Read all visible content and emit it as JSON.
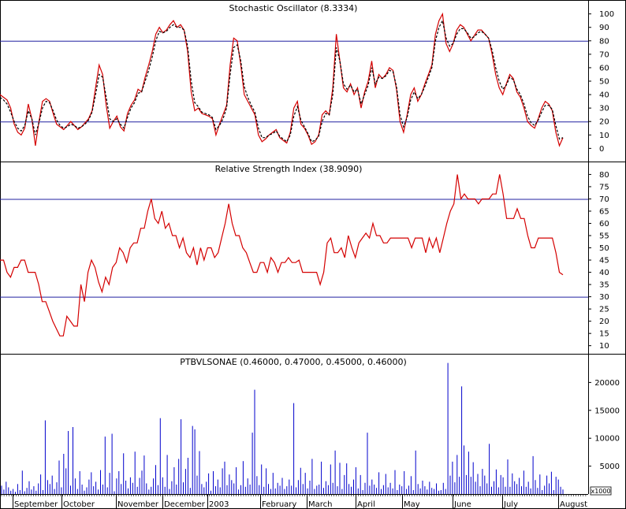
{
  "chart_data": [
    {
      "type": "line",
      "title": "Stochastic Oscillator (8.3334)",
      "ylim": [
        -8,
        108
      ],
      "yticks": [
        0,
        10,
        20,
        30,
        40,
        50,
        60,
        70,
        80,
        90,
        100
      ],
      "reference_lines": [
        20,
        80
      ],
      "series": [
        {
          "style": "solid",
          "color": "#d40000",
          "values": [
            40,
            38,
            36,
            30,
            18,
            12,
            10,
            15,
            33,
            22,
            2,
            20,
            35,
            37,
            35,
            26,
            18,
            16,
            14,
            17,
            20,
            17,
            14,
            16,
            19,
            22,
            28,
            45,
            62,
            55,
            32,
            15,
            20,
            24,
            16,
            13,
            26,
            32,
            36,
            44,
            42,
            53,
            62,
            72,
            85,
            90,
            86,
            88,
            92,
            95,
            90,
            92,
            88,
            72,
            42,
            28,
            30,
            26,
            25,
            24,
            22,
            10,
            18,
            25,
            32,
            62,
            82,
            80,
            62,
            40,
            35,
            30,
            25,
            10,
            5,
            7,
            10,
            12,
            14,
            8,
            6,
            4,
            12,
            30,
            35,
            18,
            15,
            10,
            3,
            5,
            10,
            25,
            28,
            25,
            45,
            85,
            65,
            45,
            42,
            48,
            40,
            45,
            30,
            42,
            50,
            65,
            45,
            55,
            52,
            55,
            60,
            58,
            44,
            20,
            12,
            25,
            40,
            45,
            35,
            40,
            48,
            55,
            62,
            85,
            95,
            100,
            78,
            72,
            78,
            88,
            92,
            90,
            85,
            80,
            84,
            88,
            88,
            85,
            82,
            70,
            55,
            45,
            40,
            48,
            55,
            52,
            42,
            38,
            30,
            20,
            17,
            15,
            22,
            30,
            35,
            33,
            28,
            12,
            2,
            8
          ]
        },
        {
          "style": "dashed",
          "color": "#000000",
          "values": [
            38,
            36,
            33,
            27,
            20,
            15,
            13,
            17,
            28,
            22,
            10,
            19,
            30,
            35,
            34,
            28,
            21,
            17,
            15,
            16,
            18,
            17,
            15,
            16,
            18,
            21,
            27,
            40,
            55,
            53,
            38,
            22,
            20,
            22,
            18,
            15,
            23,
            30,
            34,
            41,
            42,
            50,
            58,
            68,
            80,
            87,
            86,
            87,
            90,
            92,
            90,
            90,
            88,
            76,
            50,
            34,
            31,
            27,
            26,
            25,
            23,
            14,
            17,
            22,
            30,
            55,
            75,
            77,
            65,
            46,
            38,
            32,
            27,
            15,
            8,
            8,
            10,
            11,
            13,
            9,
            7,
            5,
            10,
            24,
            31,
            21,
            16,
            11,
            5,
            6,
            9,
            20,
            26,
            25,
            40,
            75,
            65,
            48,
            44,
            47,
            42,
            44,
            33,
            40,
            47,
            60,
            48,
            53,
            52,
            54,
            58,
            57,
            46,
            25,
            16,
            23,
            36,
            42,
            37,
            40,
            46,
            53,
            60,
            80,
            90,
            95,
            82,
            76,
            78,
            85,
            89,
            89,
            86,
            82,
            83,
            86,
            87,
            85,
            82,
            73,
            60,
            50,
            44,
            47,
            53,
            51,
            44,
            40,
            33,
            24,
            19,
            17,
            21,
            27,
            32,
            32,
            29,
            17,
            7,
            8
          ]
        }
      ]
    },
    {
      "type": "line",
      "title": "Relative Strength Index (38.9090)",
      "ylim": [
        7,
        84
      ],
      "yticks": [
        10,
        15,
        20,
        25,
        30,
        35,
        40,
        45,
        50,
        55,
        60,
        65,
        70,
        75,
        80
      ],
      "reference_lines": [
        30,
        70
      ],
      "series": [
        {
          "color": "#d40000",
          "values": [
            45,
            45,
            40,
            38,
            42,
            42,
            45,
            45,
            40,
            40,
            40,
            35,
            28,
            28,
            24,
            20,
            17,
            14,
            14,
            22,
            20,
            18,
            18,
            35,
            28,
            40,
            45,
            42,
            36,
            32,
            38,
            35,
            42,
            44,
            50,
            48,
            44,
            50,
            52,
            52,
            58,
            58,
            65,
            70,
            62,
            60,
            65,
            58,
            60,
            55,
            55,
            50,
            54,
            48,
            46,
            50,
            43,
            50,
            45,
            50,
            50,
            46,
            48,
            54,
            60,
            68,
            60,
            55,
            55,
            50,
            48,
            44,
            40,
            40,
            44,
            44,
            40,
            46,
            44,
            40,
            44,
            44,
            46,
            44,
            44,
            45,
            40,
            40,
            40,
            40,
            40,
            35,
            40,
            52,
            54,
            48,
            48,
            50,
            46,
            55,
            50,
            46,
            52,
            54,
            56,
            54,
            60,
            55,
            55,
            52,
            52,
            54,
            54,
            54,
            54,
            54,
            54,
            50,
            54,
            54,
            54,
            48,
            54,
            50,
            54,
            48,
            54,
            60,
            65,
            68,
            80,
            70,
            72,
            70,
            70,
            70,
            68,
            70,
            70,
            70,
            72,
            72,
            80,
            72,
            62,
            62,
            62,
            66,
            62,
            62,
            55,
            50,
            50,
            54,
            54,
            54,
            54,
            54,
            48,
            40,
            39
          ]
        }
      ]
    },
    {
      "type": "bar",
      "title": "PTBVLSONAE (0.46000, 0.47000, 0.45000, 0.46000)",
      "unit_label": "x1000",
      "ylim": [
        0,
        25000
      ],
      "yticks": [
        5000,
        10000,
        15000,
        20000
      ],
      "color": "#0000cc",
      "values": [
        1500,
        800,
        2200,
        1200,
        600,
        900,
        400,
        1800,
        700,
        4200,
        500,
        1100,
        2300,
        800,
        1400,
        600,
        1900,
        3500,
        700,
        13200,
        2500,
        1800,
        3300,
        900,
        2100,
        6000,
        1200,
        7200,
        4600,
        11300,
        1500,
        12000,
        2800,
        900,
        4100,
        1700,
        600,
        1200,
        2600,
        3900,
        1400,
        2200,
        800,
        4300,
        1700,
        10300,
        1200,
        3800,
        10800,
        500,
        2800,
        4100,
        1800,
        7300,
        2400,
        1000,
        3000,
        2000,
        7600,
        1300,
        2900,
        4200,
        6900,
        1900,
        800,
        1300,
        2800,
        5200,
        1600,
        13600,
        3000,
        1300,
        7000,
        900,
        2300,
        4800,
        1700,
        6300,
        13400,
        2100,
        4500,
        6500,
        1100,
        12200,
        11600,
        3300,
        7700,
        1800,
        1200,
        2200,
        3700,
        600,
        4100,
        1400,
        2600,
        1200,
        4600,
        5800,
        1600,
        3500,
        2500,
        1900,
        4800,
        800,
        1600,
        5900,
        1300,
        2800,
        1700,
        11000,
        18700,
        3200,
        1600,
        5300,
        1300,
        4600,
        1800,
        900,
        3800,
        1000,
        2000,
        1500,
        2900,
        900,
        1400,
        2600,
        1500,
        16300,
        1200,
        2500,
        4700,
        1800,
        3800,
        1000,
        2400,
        6300,
        900,
        1500,
        1700,
        5800,
        1100,
        2300,
        1600,
        5300,
        2000,
        7800,
        1400,
        5600,
        900,
        3400,
        5500,
        1800,
        1300,
        2600,
        4800,
        1000,
        3400,
        700,
        2000,
        11000,
        1500,
        2600,
        1700,
        1100,
        3900,
        900,
        1600,
        3600,
        1200,
        2000,
        1000,
        4300,
        700,
        1700,
        1400,
        4100,
        900,
        1500,
        3200,
        700,
        7800,
        1800,
        1000,
        2400,
        1400,
        800,
        2200,
        1100,
        900,
        1900,
        600,
        700,
        2000,
        900,
        23500,
        3300,
        5800,
        2100,
        7000,
        3100,
        19300,
        8700,
        3400,
        7600,
        3100,
        5700,
        2200,
        3600,
        1400,
        4500,
        3300,
        1900,
        9000,
        1300,
        2300,
        4400,
        1200,
        3400,
        3000,
        1300,
        6200,
        1300,
        3700,
        2300,
        1800,
        2900,
        1400,
        4200,
        1300,
        2200,
        1000,
        6800,
        2500,
        1100,
        3500,
        700,
        1500,
        3300,
        1900,
        4000,
        700,
        3100,
        2600,
        1300,
        800
      ]
    }
  ],
  "x_axis": {
    "labels": [
      "September",
      "October",
      "November",
      "December",
      "2003",
      "February",
      "March",
      "April",
      "May",
      "June",
      "July",
      "August"
    ]
  }
}
